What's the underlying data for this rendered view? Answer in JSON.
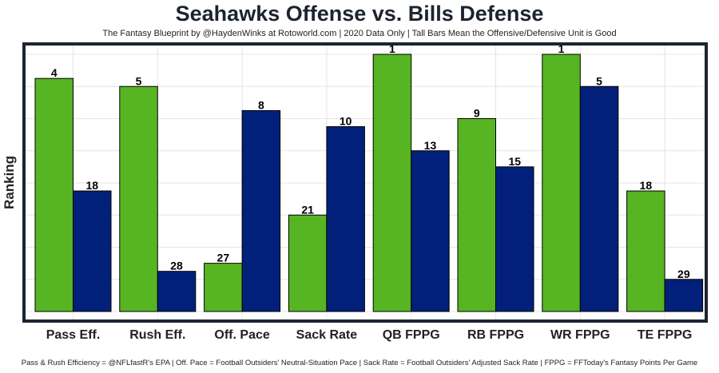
{
  "title": "Seahawks Offense vs. Bills Defense",
  "subtitle": "The Fantasy Blueprint by @HaydenWinks at Rotoworld.com | 2020 Data Only | Tall Bars Mean the Offensive/Defensive Unit is Good",
  "caption": "Pass & Rush Efficiency = @NFLfastR's EPA | Off. Pace = Football Outsiders' Neutral-Situation Pace | Sack Rate = Football Outsiders' Adjusted Sack Rate | FPPG = FFToday's Fantasy Points Per Game",
  "chart_data": {
    "type": "bar",
    "ylabel": "Ranking",
    "xlabel": "",
    "categories": [
      "Pass Eff.",
      "Rush Eff.",
      "Off. Pace",
      "Sack Rate",
      "QB FPPG",
      "RB FPPG",
      "WR FPPG",
      "TE FPPG"
    ],
    "series": [
      {
        "values": [
          4,
          5,
          27,
          21,
          1,
          9,
          1,
          18
        ],
        "color": "#57b422"
      },
      {
        "values": [
          18,
          28,
          8,
          10,
          13,
          15,
          5,
          29
        ],
        "color": "#022079"
      }
    ],
    "y_axis": "ranking, reversed: rank 1 = tallest bar, rank 32 = shortest",
    "rank_range": [
      1,
      32
    ],
    "grid": true,
    "legend": "none"
  }
}
